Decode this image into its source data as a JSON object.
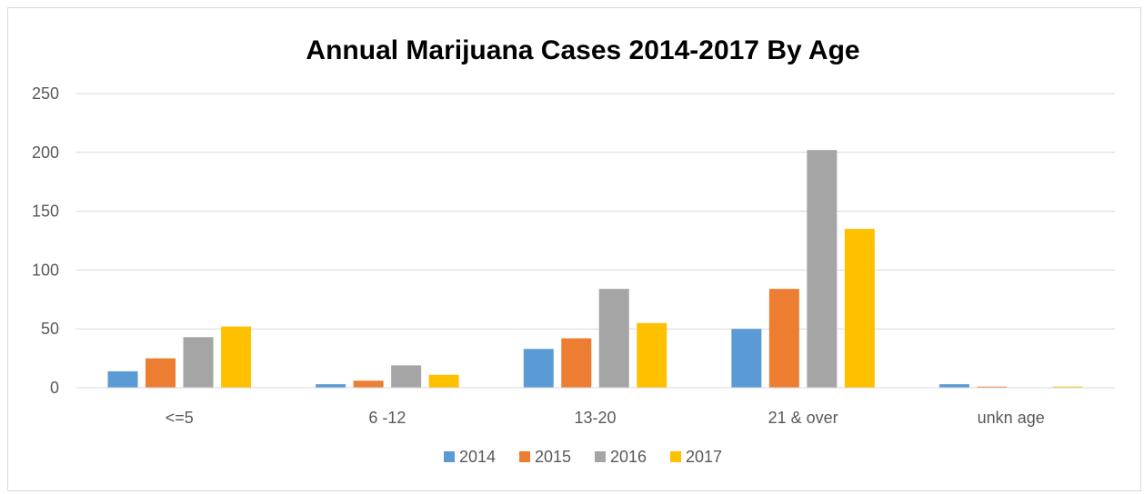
{
  "chart_data": {
    "type": "bar",
    "title": "Annual Marijuana Cases 2014-2017 By Age",
    "xlabel": "",
    "ylabel": "",
    "categories": [
      "<=5",
      "6 -12",
      "13-20",
      "21 & over",
      "unkn age"
    ],
    "series": [
      {
        "name": "2014",
        "color": "#5b9bd5",
        "values": [
          14,
          3,
          33,
          50,
          3
        ]
      },
      {
        "name": "2015",
        "color": "#ed7d31",
        "values": [
          25,
          6,
          42,
          84,
          1
        ]
      },
      {
        "name": "2016",
        "color": "#a5a5a5",
        "values": [
          43,
          19,
          84,
          202,
          0
        ]
      },
      {
        "name": "2017",
        "color": "#ffc000",
        "values": [
          52,
          11,
          55,
          135,
          1
        ]
      }
    ],
    "ylim": [
      0,
      250
    ],
    "yticks": [
      "0",
      "50",
      "100",
      "150",
      "200",
      "250"
    ],
    "grid": true,
    "legend_position": "bottom"
  }
}
